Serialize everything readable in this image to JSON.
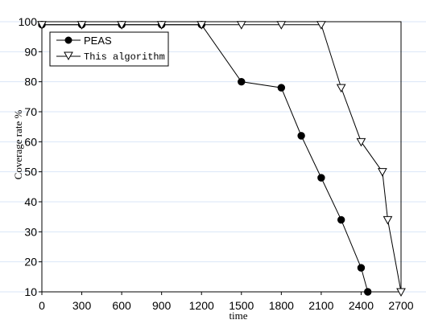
{
  "chart_data": {
    "type": "line",
    "title": "",
    "xlabel": "time",
    "ylabel": "Coverage rate %",
    "xlim": [
      0,
      2700
    ],
    "ylim": [
      10,
      100
    ],
    "xticks": [
      0,
      300,
      600,
      900,
      1200,
      1500,
      1800,
      2100,
      2400,
      2700
    ],
    "yticks": [
      10,
      20,
      30,
      40,
      50,
      60,
      70,
      80,
      90,
      100
    ],
    "xtick_labels": [
      "0",
      "300",
      "600",
      "900",
      "1200",
      "1500",
      "1800",
      "2100",
      "2400",
      "2700"
    ],
    "ytick_labels": [
      "10",
      "20",
      "30",
      "40",
      "50",
      "60",
      "70",
      "80",
      "90",
      "100"
    ],
    "grid": true,
    "legend_position": "top-left",
    "series": [
      {
        "name": "PEAS",
        "marker": "filled-circle",
        "color": "#000000",
        "x": [
          0,
          300,
          600,
          900,
          1200,
          1500,
          1800,
          1950,
          2100,
          2250,
          2400,
          2450
        ],
        "y": [
          99,
          99,
          99,
          99,
          99,
          80,
          78,
          62,
          48,
          34,
          18,
          10
        ]
      },
      {
        "name": "This algorithm",
        "marker": "open-triangle-down",
        "color": "#000000",
        "x": [
          0,
          300,
          600,
          900,
          1200,
          1500,
          1800,
          2100,
          2250,
          2400,
          2560,
          2600,
          2700
        ],
        "y": [
          99,
          99,
          99,
          99,
          99,
          99,
          99,
          99,
          78,
          60,
          50,
          34,
          10
        ]
      }
    ]
  }
}
